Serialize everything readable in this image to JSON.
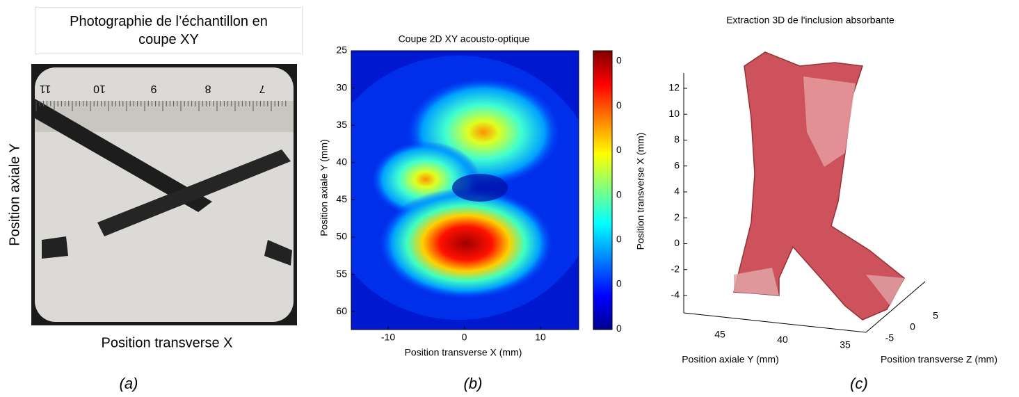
{
  "panel_a": {
    "title": "Photographie de l’échantillon en coupe XY",
    "ruler_labels": [
      "11",
      "10",
      "9",
      "8",
      "7"
    ],
    "y_label": "Position axiale Y",
    "x_label": "Position transverse X",
    "caption": "(a)"
  },
  "panel_b": {
    "title": "Coupe 2D XY acousto-optique",
    "x_label": "Position transverse X (mm)",
    "y_label": "Position axiale Y (mm)",
    "xticks": [
      "-10",
      "0",
      "10"
    ],
    "yticks": [
      "25",
      "30",
      "35",
      "40",
      "45",
      "50",
      "55",
      "60"
    ],
    "colorbar_ticks": [
      "0",
      "0",
      "0",
      "0",
      "0",
      "0",
      "0"
    ],
    "caption": "(b)"
  },
  "panel_c": {
    "title": "Extraction 3D de l'inclusion absorbante",
    "vertical_label": "Position transverse X (mm)",
    "vertical_ticks": [
      "12",
      "10",
      "8",
      "6",
      "4",
      "2",
      "0",
      "-2",
      "-4"
    ],
    "depth_label": "Position axiale Y (mm)",
    "depth_ticks": [
      "45",
      "40",
      "35"
    ],
    "side_label": "Position transverse Z (mm)",
    "side_ticks": [
      "5",
      "0",
      "-5"
    ],
    "caption": "(c)"
  }
}
